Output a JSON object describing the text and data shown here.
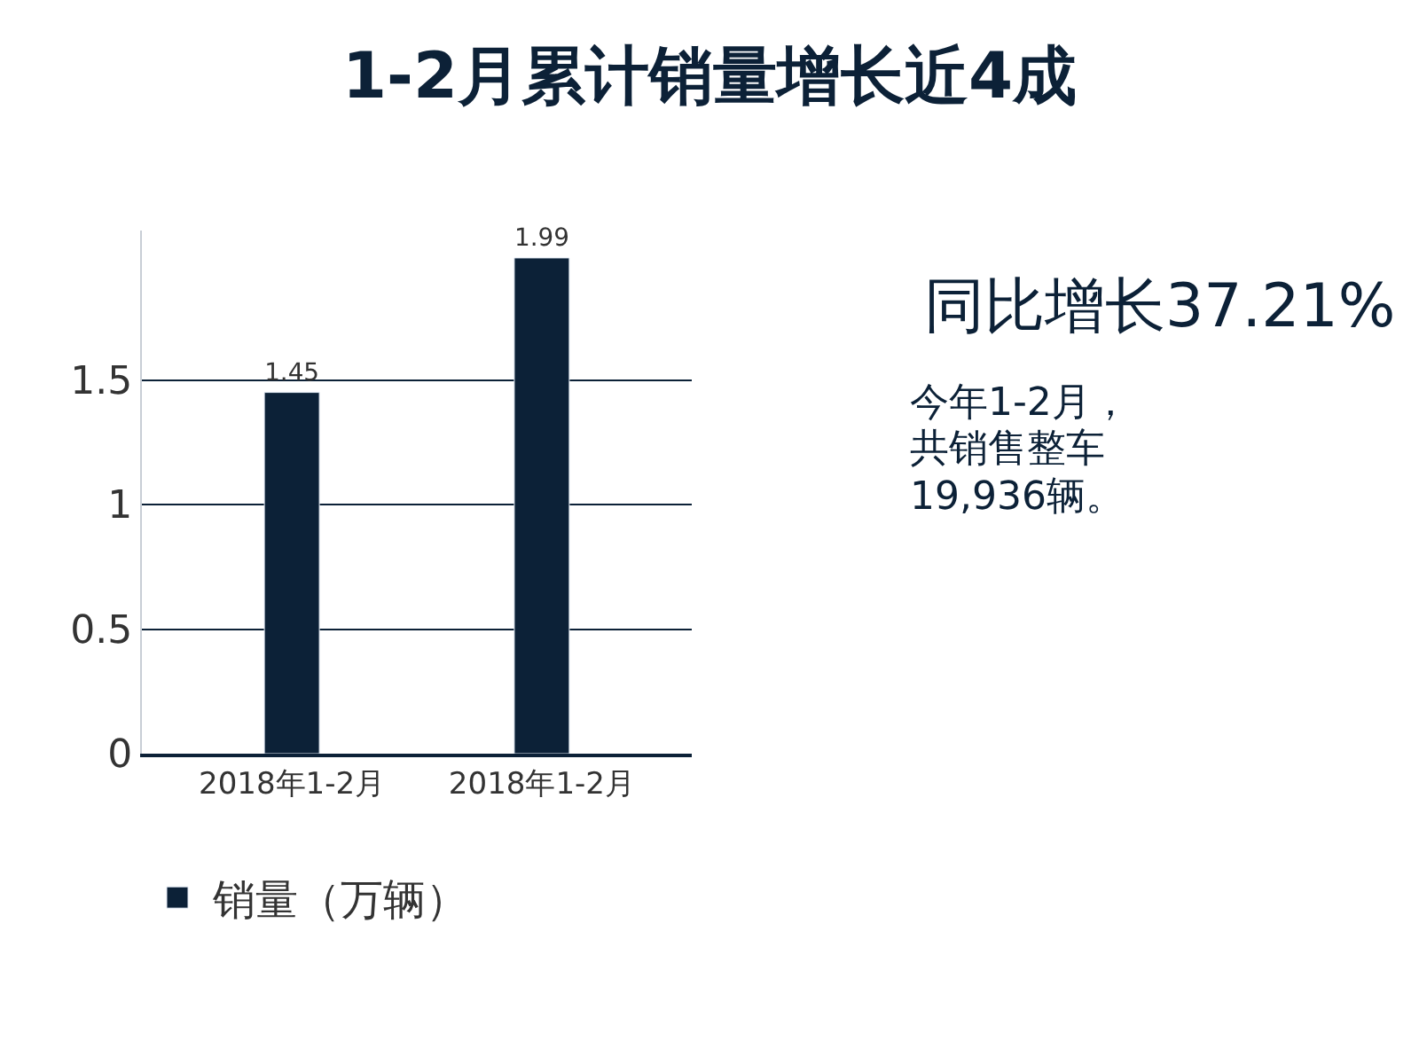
{
  "chart_data": {
    "type": "bar",
    "title": "1-2月累计销量增长近4成",
    "categories": [
      "2018年1-2月",
      "2018年1-2月"
    ],
    "series": [
      {
        "name": "销量（万辆）",
        "color": "#0c2137",
        "values": [
          1.45,
          1.99
        ]
      }
    ],
    "ylim": [
      0,
      2.1
    ],
    "yticks": [
      0,
      0.5,
      1,
      1.5
    ],
    "grid": "y",
    "legend": "bottom",
    "data_labels": true,
    "annotations": [
      "同比增长37.21%",
      "今年1-2月，",
      "共销售整车",
      "19,936辆。"
    ]
  }
}
